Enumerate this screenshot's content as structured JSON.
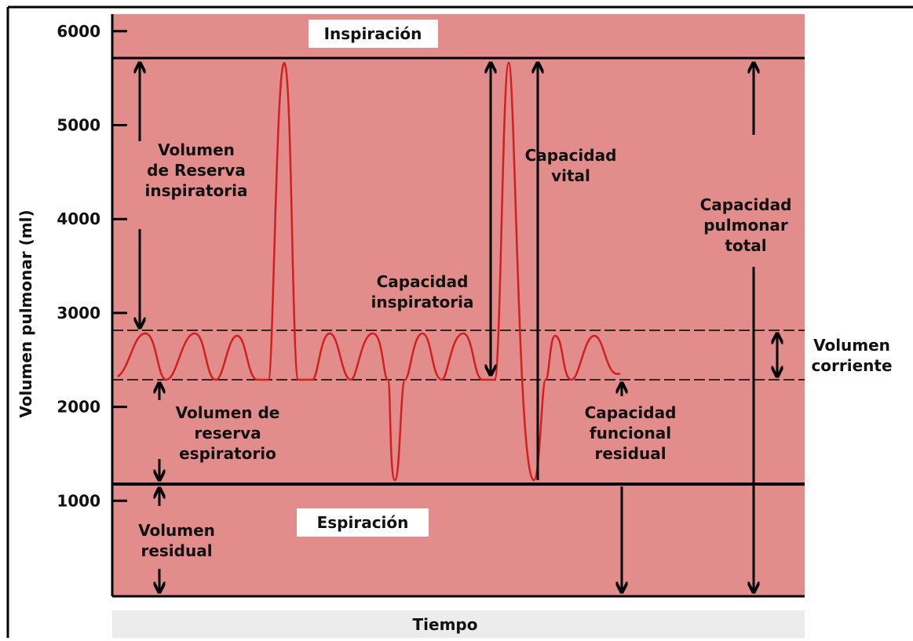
{
  "y_axis": {
    "label": "Volumen pulmonar (ml)",
    "ticks": [
      6000,
      5000,
      4000,
      3000,
      2000,
      1000
    ]
  },
  "x_axis": {
    "label": "Tiempo"
  },
  "regions": {
    "top": "Inspiración",
    "bottom": "Espiración"
  },
  "labels": {
    "reserva_inspiratoria": [
      "Volumen",
      "de Reserva",
      "inspiratoria"
    ],
    "reserva_espiratoria": [
      "Volumen de",
      "reserva",
      "espiratorio"
    ],
    "residual": [
      "Volumen",
      "residual"
    ],
    "capacidad_inspiratoria": [
      "Capacidad",
      "inspiratoria"
    ],
    "capacidad_vital": [
      "Capacidad",
      "vital"
    ],
    "capacidad_total": [
      "Capacidad",
      "pulmonar",
      "total"
    ],
    "corriente": [
      "Volumen",
      "corriente"
    ],
    "funcional_residual": [
      "Capacidad",
      "funcional",
      "residual"
    ]
  }
}
